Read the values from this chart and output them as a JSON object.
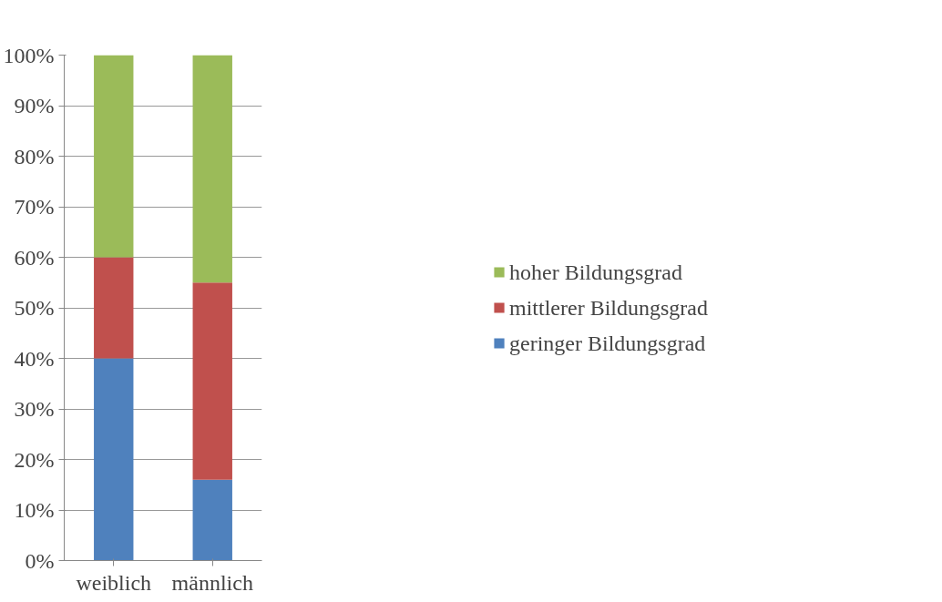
{
  "chart_data": {
    "type": "bar",
    "stacked": true,
    "categories": [
      "weiblich",
      "männlich"
    ],
    "series": [
      {
        "name": "geringer Bildungsgrad",
        "color": "#4f81bd",
        "values": [
          40,
          16
        ]
      },
      {
        "name": "mittlerer Bildungsgrad",
        "color": "#c0504d",
        "values": [
          20,
          39
        ]
      },
      {
        "name": "hoher Bildungsgrad",
        "color": "#9bbb59",
        "values": [
          40,
          45
        ]
      }
    ],
    "ylim": [
      0,
      100
    ],
    "yticks": [
      {
        "value": 0,
        "label": "0%"
      },
      {
        "value": 10,
        "label": "10%"
      },
      {
        "value": 20,
        "label": "20%"
      },
      {
        "value": 30,
        "label": "30%"
      },
      {
        "value": 40,
        "label": "40%"
      },
      {
        "value": 50,
        "label": "50%"
      },
      {
        "value": 60,
        "label": "60%"
      },
      {
        "value": 70,
        "label": "70%"
      },
      {
        "value": 80,
        "label": "80%"
      },
      {
        "value": 90,
        "label": "90%"
      },
      {
        "value": 100,
        "label": "100%"
      }
    ],
    "grid": "y",
    "legend": "right"
  }
}
